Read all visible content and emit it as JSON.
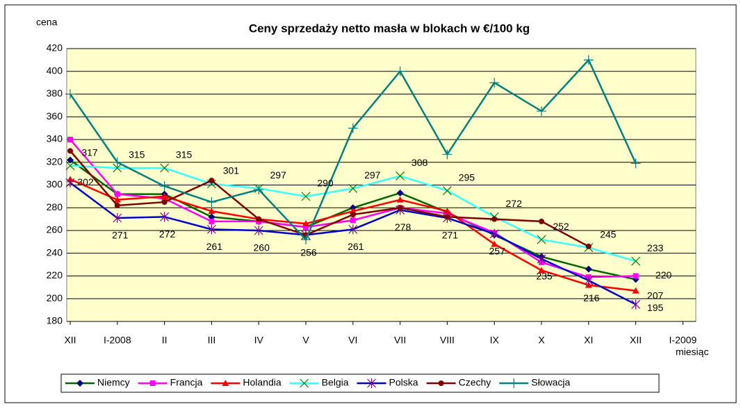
{
  "chart_data": {
    "type": "line",
    "title": "Ceny sprzedaży netto masła w blokach w €/100 kg",
    "y_label": "cena",
    "x_label": "miesiąc",
    "categories": [
      "XII",
      "I-2008",
      "II",
      "III",
      "IV",
      "V",
      "VI",
      "VII",
      "VIII",
      "IX",
      "X",
      "XI",
      "XII",
      "I-2009"
    ],
    "ylim": [
      180,
      420
    ],
    "yticks": [
      180,
      200,
      220,
      240,
      260,
      280,
      300,
      320,
      340,
      360,
      380,
      400,
      420
    ],
    "grid": true,
    "legend": "bottom",
    "series": [
      {
        "name": "Niemcy",
        "color": "#006600",
        "marker": "diamond",
        "values": [
          322,
          292,
          292,
          272,
          268,
          263,
          280,
          293,
          276,
          256,
          237,
          226,
          217,
          null
        ]
      },
      {
        "name": "Francja",
        "color": "#ff00ff",
        "marker": "square",
        "values": [
          340,
          292,
          288,
          268,
          268,
          263,
          269,
          280,
          275,
          258,
          232,
          219,
          220,
          null
        ],
        "value_labels": [
          null,
          null,
          null,
          null,
          null,
          null,
          null,
          null,
          null,
          null,
          null,
          null,
          220,
          null
        ]
      },
      {
        "name": "Holandia",
        "color": "#ff0000",
        "marker": "triangle",
        "values": [
          305,
          287,
          290,
          277,
          270,
          266,
          277,
          287,
          277,
          248,
          225,
          212,
          207,
          null
        ],
        "value_labels": [
          null,
          null,
          null,
          null,
          null,
          null,
          null,
          null,
          null,
          null,
          null,
          null,
          207,
          null
        ]
      },
      {
        "name": "Belgia",
        "color": "#33ffff",
        "marker": "x",
        "values": [
          317,
          315,
          315,
          301,
          297,
          290,
          297,
          308,
          295,
          272,
          252,
          245,
          233,
          null
        ],
        "value_labels": [
          317,
          315,
          315,
          301,
          297,
          290,
          297,
          308,
          295,
          272,
          252,
          245,
          233,
          null
        ]
      },
      {
        "name": "Polska",
        "color": "#0000cc",
        "marker": "star",
        "values": [
          302,
          271,
          272,
          261,
          260,
          256,
          261,
          278,
          271,
          257,
          235,
          216,
          195,
          null
        ],
        "value_labels": [
          302,
          271,
          272,
          261,
          260,
          256,
          261,
          278,
          271,
          257,
          235,
          216,
          195,
          null
        ]
      },
      {
        "name": "Czechy",
        "color": "#800000",
        "marker": "circle",
        "values": [
          330,
          282,
          285,
          304,
          270,
          256,
          274,
          280,
          272,
          270,
          268,
          246,
          null,
          null
        ]
      },
      {
        "name": "Słowacja",
        "color": "#008080",
        "marker": "plus",
        "values": [
          380,
          320,
          299,
          285,
          296,
          252,
          350,
          400,
          327,
          390,
          365,
          410,
          319,
          null
        ]
      }
    ]
  }
}
